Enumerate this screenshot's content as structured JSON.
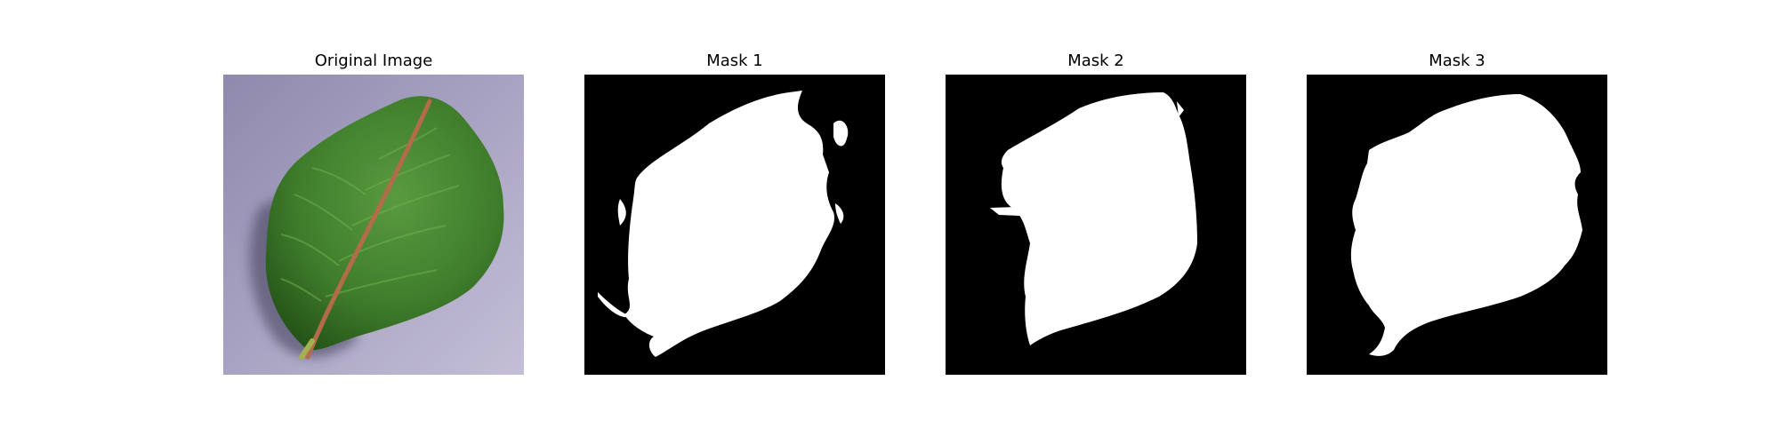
{
  "figure": {
    "panels": [
      {
        "title": "Original Image",
        "kind": "leaf-photo"
      },
      {
        "title": "Mask 1",
        "kind": "binary-mask"
      },
      {
        "title": "Mask 2",
        "kind": "binary-mask"
      },
      {
        "title": "Mask 3",
        "kind": "binary-mask"
      }
    ]
  },
  "colors": {
    "background": "#ffffff",
    "mask_background": "#000000",
    "mask_foreground": "#ffffff",
    "leaf_green": "#3f7d2c",
    "leaf_dark": "#245317",
    "midrib": "#b36b4a",
    "surface": "#a6a0c0"
  }
}
